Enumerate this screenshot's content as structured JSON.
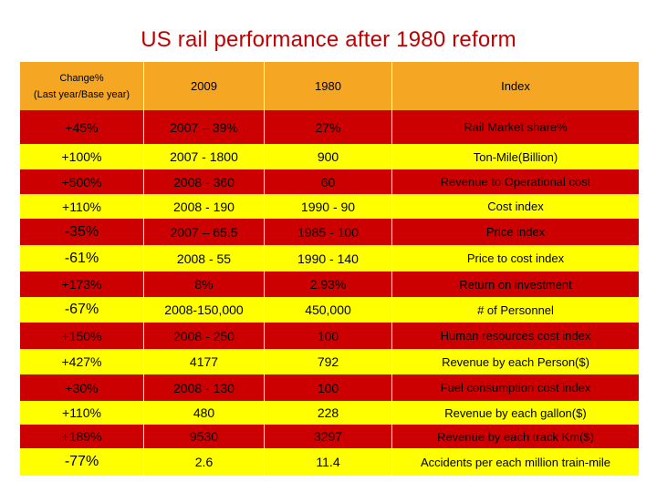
{
  "title": "US rail performance after 1980 reform",
  "table": {
    "headers": [
      "Change%",
      "(Last year/Base year)",
      "2009",
      "1980",
      "Index"
    ],
    "rows": [
      {
        "change": "+45%",
        "y2009": "2007 – 39%",
        "y1980": "27%",
        "index": "Rail Market share%",
        "color": "red"
      },
      {
        "change": "+100%",
        "y2009": "2007 - 1800",
        "y1980": "900",
        "index": "Ton-Mile(Billion)",
        "color": "yellow"
      },
      {
        "change": "+500%",
        "y2009": "2008 - 360",
        "y1980": "60",
        "index": "Revenue to Operational cost",
        "color": "red"
      },
      {
        "change": "+110%",
        "y2009": "2008 - 190",
        "y1980": "1990 - 90",
        "index": "Cost index",
        "color": "yellow"
      },
      {
        "change": "-35%",
        "y2009": "2007 – 65.5",
        "y1980": "1985 - 100",
        "index": "Price index",
        "color": "red"
      },
      {
        "change": "-61%",
        "y2009": "2008 - 55",
        "y1980": "1990 - 140",
        "index": "Price to cost index",
        "color": "yellow"
      },
      {
        "change": "+173%",
        "y2009": "8%",
        "y1980": "2.93%",
        "index": "Return on investment",
        "color": "red"
      },
      {
        "change": "-67%",
        "y2009": "2008-150,000",
        "y1980": "450,000",
        "index": "# of Personnel",
        "color": "yellow"
      },
      {
        "change": "+150%",
        "y2009": "2008 - 250",
        "y1980": "100",
        "index": "Human resources cost index",
        "color": "red"
      },
      {
        "change": "+427%",
        "y2009": "4177",
        "y1980": "792",
        "index": "Revenue by each Person($)",
        "color": "yellow"
      },
      {
        "change": "+30%",
        "y2009": "2008 - 130",
        "y1980": "100",
        "index": "Fuel consumption cost index",
        "color": "red"
      },
      {
        "change": "+110%",
        "y2009": "480",
        "y1980": "228",
        "index": "Revenue by each gallon($)",
        "color": "yellow"
      },
      {
        "change": "+189%",
        "y2009": "9530",
        "y1980": "3297",
        "index": "Revenue by each track Km($)",
        "color": "red"
      },
      {
        "change": "-77%",
        "y2009": "2.6",
        "y1980": "11.4",
        "index": "Accidents per each million train-mile",
        "color": "yellow"
      }
    ]
  },
  "colors": {
    "header": "#f5a623",
    "red": "#cc0000",
    "yellow": "#ffff00",
    "title": "#c00000"
  }
}
